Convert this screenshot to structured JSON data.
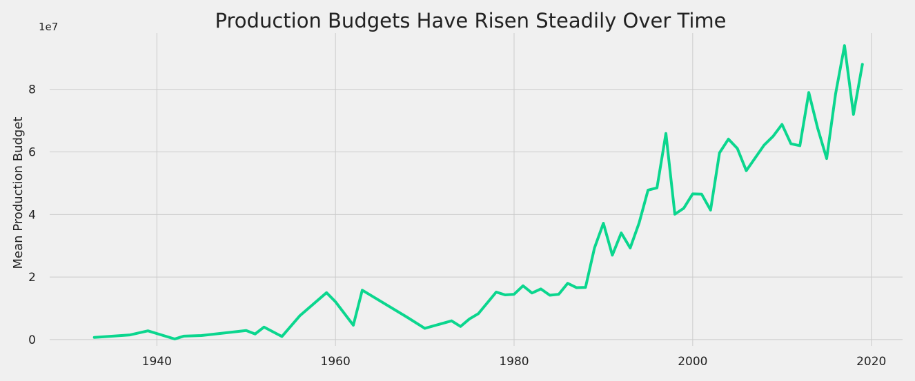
{
  "chart_data": {
    "type": "line",
    "title": "Production Budgets Have Risen Steadily Over Time",
    "xlabel": "",
    "ylabel": "Mean Production Budget",
    "y_exponent_label": "1e7",
    "xlim": [
      1928,
      2023.5
    ],
    "ylim": [
      -0.2,
      9.8
    ],
    "x_ticks": [
      1940,
      1960,
      1980,
      2000,
      2020
    ],
    "x_tick_labels": [
      "1940",
      "1960",
      "1980",
      "2000",
      "2020"
    ],
    "y_ticks": [
      0,
      2,
      4,
      6,
      8
    ],
    "y_tick_labels": [
      "0",
      "2",
      "4",
      "6",
      "8"
    ],
    "grid": true,
    "colors": {
      "background": "#f0f0f0",
      "grid": "#cbcbcb",
      "line": "#0bd68e"
    },
    "series": [
      {
        "color": "#0bd68e",
        "x": [
          1933,
          1937,
          1939,
          1942,
          1943,
          1945,
          1950,
          1951,
          1952,
          1954,
          1956,
          1959,
          1960,
          1962,
          1963,
          1968,
          1970,
          1973,
          1974,
          1975,
          1976,
          1978,
          1979,
          1980,
          1981,
          1982,
          1983,
          1984,
          1985,
          1986,
          1987,
          1988,
          1989,
          1990,
          1991,
          1992,
          1993,
          1994,
          1995,
          1996,
          1997,
          1998,
          1999,
          2000,
          2001,
          2002,
          2003,
          2004,
          2005,
          2006,
          2008,
          2009,
          2010,
          2011,
          2012,
          2013,
          2014,
          2015,
          2016,
          2017,
          2018,
          2019
        ],
        "values": [
          0.07,
          0.15,
          0.28,
          0.02,
          0.11,
          0.13,
          0.29,
          0.18,
          0.4,
          0.1,
          0.76,
          1.5,
          1.21,
          0.46,
          1.58,
          0.72,
          0.36,
          0.6,
          0.42,
          0.66,
          0.83,
          1.52,
          1.43,
          1.45,
          1.72,
          1.49,
          1.62,
          1.42,
          1.45,
          1.8,
          1.66,
          1.67,
          2.93,
          3.72,
          2.7,
          3.41,
          2.93,
          3.73,
          4.78,
          4.85,
          6.59,
          4.01,
          4.2,
          4.66,
          4.65,
          4.14,
          5.97,
          6.41,
          6.11,
          5.4,
          6.22,
          6.5,
          6.88,
          6.26,
          6.2,
          7.9,
          6.75,
          5.79,
          7.86,
          9.4,
          7.2,
          8.8
        ]
      }
    ]
  }
}
